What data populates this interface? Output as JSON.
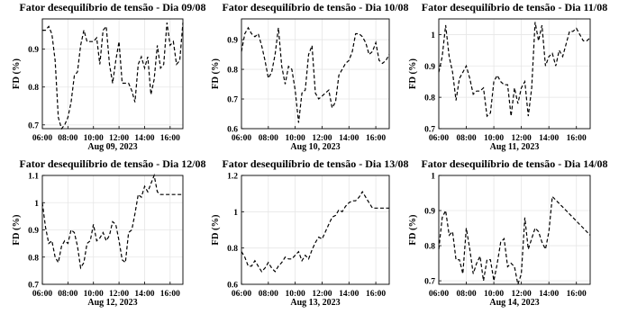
{
  "chart_data": [
    {
      "type": "line",
      "title": "Fator desequilíbrio de tensão - Dia 09/08",
      "ylabel": "FD (%)",
      "xlabel": "Aug 09, 2023",
      "x_ticks": [
        "06:00",
        "08:00",
        "10:00",
        "12:00",
        "14:00",
        "16:00"
      ],
      "y_ticks": [
        "0.7",
        "0.8",
        "0.9"
      ],
      "xlim": [
        "06:00",
        "17:00"
      ],
      "ylim": [
        0.69,
        0.98
      ],
      "grid": true,
      "series": [
        {
          "line_style": "dashed",
          "color": "#000000",
          "x": [
            "06:00",
            "06:15",
            "06:30",
            "06:45",
            "07:00",
            "07:15",
            "07:30",
            "07:45",
            "08:00",
            "08:15",
            "08:30",
            "08:45",
            "09:00",
            "09:15",
            "09:30",
            "09:45",
            "10:00",
            "10:15",
            "10:30",
            "10:45",
            "11:00",
            "11:15",
            "11:30",
            "11:45",
            "12:00",
            "12:15",
            "12:30",
            "12:45",
            "13:00",
            "13:15",
            "13:30",
            "13:45",
            "14:00",
            "14:15",
            "14:30",
            "14:45",
            "15:00",
            "15:15",
            "15:30",
            "15:45",
            "16:00",
            "16:15",
            "16:30",
            "16:45",
            "17:00"
          ],
          "y": [
            0.95,
            0.95,
            0.96,
            0.94,
            0.87,
            0.72,
            0.69,
            0.7,
            0.72,
            0.76,
            0.83,
            0.84,
            0.91,
            0.95,
            0.92,
            0.92,
            0.92,
            0.93,
            0.86,
            0.95,
            0.96,
            0.86,
            0.81,
            0.87,
            0.92,
            0.81,
            0.81,
            0.81,
            0.79,
            0.76,
            0.86,
            0.88,
            0.85,
            0.88,
            0.78,
            0.82,
            0.91,
            0.85,
            0.86,
            0.97,
            0.91,
            0.92,
            0.86,
            0.87,
            0.97
          ]
        }
      ]
    },
    {
      "type": "line",
      "title": "Fator desequilíbrio de tensão - Dia 10/08",
      "ylabel": "FD (%)",
      "xlabel": "Aug 10, 2023",
      "x_ticks": [
        "06:00",
        "08:00",
        "10:00",
        "12:00",
        "14:00",
        "16:00"
      ],
      "y_ticks": [
        "0.6",
        "0.7",
        "0.8",
        "0.9"
      ],
      "xlim": [
        "06:00",
        "17:00"
      ],
      "ylim": [
        0.6,
        0.97
      ],
      "grid": true,
      "series": [
        {
          "line_style": "dashed",
          "color": "#000000",
          "x": [
            "06:00",
            "06:15",
            "06:30",
            "06:45",
            "07:00",
            "07:15",
            "07:30",
            "07:45",
            "08:00",
            "08:15",
            "08:30",
            "08:45",
            "09:00",
            "09:15",
            "09:30",
            "09:45",
            "10:00",
            "10:15",
            "10:30",
            "10:45",
            "11:00",
            "11:15",
            "11:30",
            "11:45",
            "12:00",
            "12:15",
            "12:30",
            "12:45",
            "13:00",
            "13:15",
            "13:30",
            "13:45",
            "14:00",
            "14:15",
            "14:30",
            "14:45",
            "15:00",
            "15:15",
            "15:30",
            "15:45",
            "16:00",
            "16:15",
            "16:30",
            "16:45",
            "17:00"
          ],
          "y": [
            0.86,
            0.92,
            0.94,
            0.92,
            0.91,
            0.92,
            0.88,
            0.83,
            0.77,
            0.79,
            0.85,
            0.94,
            0.81,
            0.75,
            0.81,
            0.8,
            0.73,
            0.62,
            0.72,
            0.73,
            0.85,
            0.88,
            0.72,
            0.7,
            0.71,
            0.72,
            0.73,
            0.67,
            0.69,
            0.78,
            0.8,
            0.82,
            0.83,
            0.86,
            0.92,
            0.92,
            0.91,
            0.89,
            0.85,
            0.86,
            0.89,
            0.83,
            0.82,
            0.83,
            0.85
          ]
        }
      ]
    },
    {
      "type": "line",
      "title": "Fator desequilíbrio de tensão - Dia 11/08",
      "ylabel": "FD (%)",
      "xlabel": "Aug 11, 2023",
      "x_ticks": [
        "06:00",
        "08:00",
        "10:00",
        "12:00",
        "14:00",
        "16:00"
      ],
      "y_ticks": [
        "0.7",
        "0.8",
        "0.9",
        "1"
      ],
      "xlim": [
        "06:00",
        "17:00"
      ],
      "ylim": [
        0.7,
        1.05
      ],
      "grid": true,
      "series": [
        {
          "line_style": "dashed",
          "color": "#000000",
          "x": [
            "06:00",
            "06:15",
            "06:30",
            "06:45",
            "07:00",
            "07:15",
            "07:30",
            "07:45",
            "08:00",
            "08:15",
            "08:30",
            "08:45",
            "09:00",
            "09:15",
            "09:30",
            "09:45",
            "10:00",
            "10:15",
            "10:30",
            "10:45",
            "11:00",
            "11:15",
            "11:30",
            "11:45",
            "12:00",
            "12:15",
            "12:30",
            "12:45",
            "13:00",
            "13:15",
            "13:30",
            "13:45",
            "14:00",
            "14:15",
            "14:30",
            "14:45",
            "15:00",
            "15:15",
            "15:30",
            "15:45",
            "16:00",
            "16:15",
            "16:30",
            "16:45",
            "17:00"
          ],
          "y": [
            0.88,
            0.93,
            1.03,
            0.93,
            0.88,
            0.79,
            0.86,
            0.88,
            0.9,
            0.86,
            0.81,
            0.82,
            0.82,
            0.83,
            0.74,
            0.75,
            0.85,
            0.87,
            0.85,
            0.84,
            0.84,
            0.74,
            0.83,
            0.78,
            0.83,
            0.85,
            0.74,
            0.83,
            1.04,
            0.98,
            1.03,
            0.9,
            0.93,
            0.94,
            0.9,
            0.95,
            0.93,
            0.97,
            1.01,
            1.01,
            1.02,
            1.0,
            0.98,
            0.98,
            0.99
          ]
        }
      ]
    },
    {
      "type": "line",
      "title": "Fator desequilíbrio de tensão - Dia 12/08",
      "ylabel": "FD (%)",
      "xlabel": "Aug 12, 2023",
      "x_ticks": [
        "06:00",
        "08:00",
        "10:00",
        "12:00",
        "14:00",
        "16:00"
      ],
      "y_ticks": [
        "0.7",
        "0.8",
        "0.9",
        "1",
        "1.1"
      ],
      "xlim": [
        "06:00",
        "17:00"
      ],
      "ylim": [
        0.7,
        1.1
      ],
      "grid": true,
      "series": [
        {
          "line_style": "dashed",
          "color": "#000000",
          "x": [
            "06:00",
            "06:15",
            "06:30",
            "06:45",
            "07:00",
            "07:15",
            "07:30",
            "07:45",
            "08:00",
            "08:15",
            "08:30",
            "08:45",
            "09:00",
            "09:15",
            "09:30",
            "09:45",
            "10:00",
            "10:15",
            "10:30",
            "10:45",
            "11:00",
            "11:15",
            "11:30",
            "11:45",
            "12:00",
            "12:15",
            "12:30",
            "12:45",
            "13:00",
            "13:15",
            "13:30",
            "13:45",
            "14:00",
            "14:15",
            "14:30",
            "14:45",
            "15:00",
            "15:15",
            "15:30",
            "15:45",
            "16:00",
            "16:15",
            "16:30",
            "16:45",
            "17:00"
          ],
          "y": [
            1.0,
            0.91,
            0.85,
            0.86,
            0.8,
            0.78,
            0.84,
            0.86,
            0.85,
            0.9,
            0.89,
            0.84,
            0.76,
            0.78,
            0.85,
            0.86,
            0.92,
            0.86,
            0.87,
            0.89,
            0.86,
            0.88,
            0.93,
            0.92,
            0.86,
            0.79,
            0.78,
            0.89,
            0.9,
            0.96,
            1.03,
            1.02,
            1.06,
            1.04,
            1.07,
            1.1,
            1.04,
            1.03,
            1.03,
            1.03,
            1.03,
            1.03,
            1.03,
            1.03,
            1.03
          ]
        }
      ]
    },
    {
      "type": "line",
      "title": "Fator desequilíbrio de tensão - Dia 13/08",
      "ylabel": "FD (%)",
      "xlabel": "Aug 13, 2023",
      "x_ticks": [
        "06:00",
        "08:00",
        "10:00",
        "12:00",
        "14:00",
        "16:00"
      ],
      "y_ticks": [
        "0.6",
        "0.8",
        "1",
        "1.2"
      ],
      "xlim": [
        "06:00",
        "17:00"
      ],
      "ylim": [
        0.6,
        1.2
      ],
      "grid": true,
      "series": [
        {
          "line_style": "dashed",
          "color": "#000000",
          "x": [
            "06:00",
            "06:15",
            "06:30",
            "06:45",
            "07:00",
            "07:15",
            "07:30",
            "07:45",
            "08:00",
            "08:15",
            "08:30",
            "08:45",
            "09:00",
            "09:15",
            "09:30",
            "09:45",
            "10:00",
            "10:15",
            "10:30",
            "10:45",
            "11:00",
            "11:15",
            "11:30",
            "11:45",
            "12:00",
            "12:15",
            "12:30",
            "12:45",
            "13:00",
            "13:15",
            "13:30",
            "13:45",
            "14:00",
            "14:15",
            "14:30",
            "14:45",
            "15:00",
            "15:15",
            "15:30",
            "15:45",
            "16:00",
            "16:15",
            "16:30",
            "16:45",
            "17:00"
          ],
          "y": [
            0.78,
            0.75,
            0.7,
            0.7,
            0.73,
            0.7,
            0.67,
            0.69,
            0.72,
            0.69,
            0.67,
            0.7,
            0.72,
            0.75,
            0.74,
            0.74,
            0.76,
            0.78,
            0.73,
            0.76,
            0.74,
            0.79,
            0.83,
            0.86,
            0.85,
            0.89,
            0.93,
            0.97,
            0.98,
            1.01,
            1.0,
            1.03,
            1.05,
            1.06,
            1.06,
            1.08,
            1.11,
            1.08,
            1.05,
            1.02,
            1.02,
            1.02,
            1.02,
            1.02,
            1.02
          ]
        }
      ]
    },
    {
      "type": "line",
      "title": "Fator desequilíbrio de tensão - Dia 14/08",
      "ylabel": "FD (%)",
      "xlabel": "Aug 14, 2023",
      "x_ticks": [
        "06:00",
        "08:00",
        "10:00",
        "12:00",
        "14:00",
        "16:00"
      ],
      "y_ticks": [
        "0.7",
        "0.8",
        "0.9",
        "1"
      ],
      "xlim": [
        "06:00",
        "17:00"
      ],
      "ylim": [
        0.69,
        1.0
      ],
      "grid": true,
      "series": [
        {
          "line_style": "dashed",
          "color": "#000000",
          "x": [
            "06:00",
            "06:15",
            "06:30",
            "06:45",
            "07:00",
            "07:15",
            "07:30",
            "07:45",
            "08:00",
            "08:15",
            "08:30",
            "08:45",
            "09:00",
            "09:15",
            "09:30",
            "09:45",
            "10:00",
            "10:15",
            "10:30",
            "10:45",
            "11:00",
            "11:15",
            "11:30",
            "11:45",
            "12:00",
            "12:15",
            "12:30",
            "12:45",
            "13:00",
            "13:15",
            "13:30",
            "13:45",
            "14:00",
            "14:15",
            "14:30",
            "14:45",
            "15:00",
            "15:15",
            "15:30",
            "15:45",
            "16:00",
            "16:15",
            "16:30",
            "16:45",
            "17:00"
          ],
          "y": [
            0.79,
            0.88,
            0.9,
            0.83,
            0.84,
            0.76,
            0.76,
            0.72,
            0.85,
            0.79,
            0.72,
            0.75,
            0.77,
            0.7,
            0.76,
            0.76,
            0.7,
            0.75,
            0.81,
            0.82,
            0.74,
            0.75,
            0.74,
            0.69,
            0.72,
            0.88,
            0.79,
            0.82,
            0.85,
            0.84,
            0.81,
            0.79,
            0.84,
            0.94,
            0.93,
            0.92,
            0.91,
            0.9,
            0.89,
            0.88,
            0.87,
            0.86,
            0.85,
            0.84,
            0.83
          ]
        }
      ]
    }
  ]
}
